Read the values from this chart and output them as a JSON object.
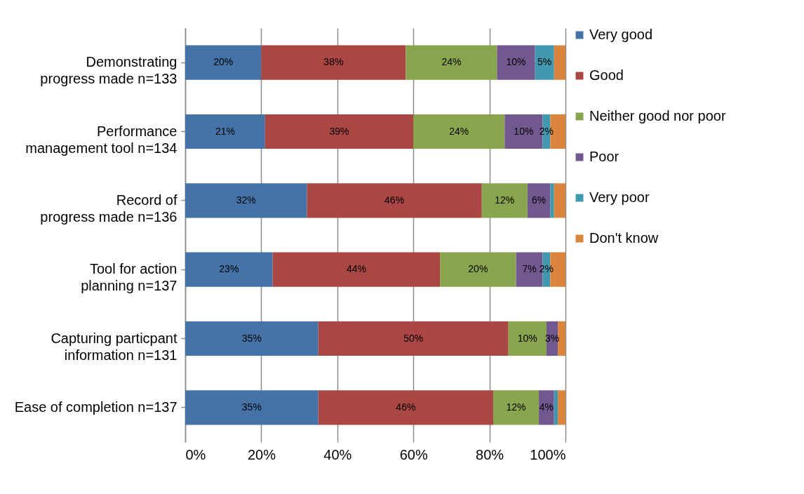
{
  "chart_data": {
    "type": "bar",
    "orientation": "horizontal",
    "stacked": true,
    "categories": [
      "Demonstrating progress made  n=133",
      "Performance management tool  n=134",
      "Record of progress made n=136",
      "Tool for action planning n=137",
      "Capturing particpant information  n=131",
      "Ease of completion n=137"
    ],
    "series": [
      {
        "name": "Very good",
        "color": "#4573a7",
        "values": [
          20,
          21,
          32,
          23,
          35,
          35
        ],
        "value_labels": [
          "20%",
          "21%",
          "32%",
          "23%",
          "35%",
          "35%"
        ]
      },
      {
        "name": "Good",
        "color": "#aa4644",
        "values": [
          38,
          39,
          46,
          44,
          50,
          46
        ],
        "value_labels": [
          "38%",
          "39%",
          "46%",
          "44%",
          "50%",
          "46%"
        ]
      },
      {
        "name": "Neither good nor poor",
        "color": "#89a54e",
        "values": [
          24,
          24,
          12,
          20,
          10,
          12
        ],
        "value_labels": [
          "24%",
          "24%",
          "12%",
          "20%",
          "10%",
          "12%"
        ]
      },
      {
        "name": "Poor",
        "color": "#71588f",
        "values": [
          10,
          10,
          6,
          7,
          3,
          4
        ],
        "value_labels": [
          "10%",
          "10%",
          "6%",
          "7%",
          "3%",
          "4%"
        ]
      },
      {
        "name": "Very poor",
        "color": "#4198af",
        "values": [
          5,
          2,
          1,
          2,
          0,
          1
        ],
        "value_labels": [
          "5%",
          "2%",
          null,
          "2%",
          null,
          null
        ]
      },
      {
        "name": "Don't know",
        "color": "#db843d",
        "values": [
          3,
          4,
          3,
          4,
          2,
          2
        ],
        "value_labels": [
          null,
          null,
          null,
          null,
          null,
          null
        ]
      }
    ],
    "xlim": [
      0,
      100
    ],
    "xticks": [
      {
        "value": 0,
        "label": "0%"
      },
      {
        "value": 20,
        "label": "20%"
      },
      {
        "value": 40,
        "label": "40%"
      },
      {
        "value": 60,
        "label": "60%"
      },
      {
        "value": 80,
        "label": "80%"
      },
      {
        "value": 100,
        "label": "100%"
      }
    ],
    "grid": "x",
    "legend": "right"
  }
}
